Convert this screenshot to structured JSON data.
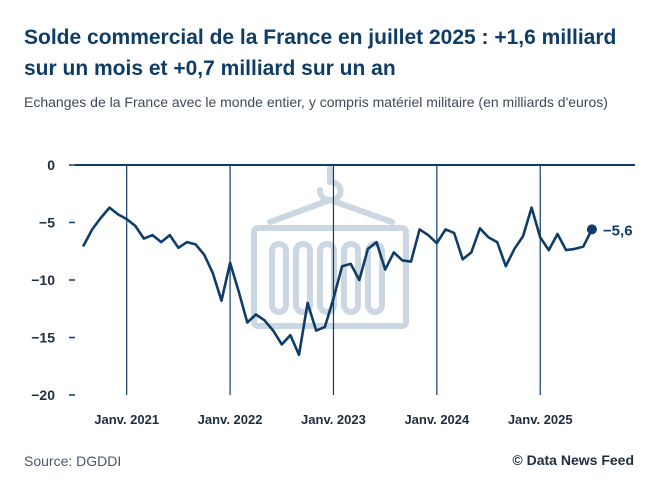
{
  "header": {
    "title": "Solde commercial de la France en juillet 2025 : +1,6 milliard sur un mois et +0,7 milliard sur un an",
    "subtitle": "Echanges de la France avec le monde entier, y compris matériel militaire (en milliards d'euros)"
  },
  "footer": {
    "source": "Source: DGDDI",
    "credit": "© Data News Feed"
  },
  "colors": {
    "line": "#0f3d68",
    "grid": "#0f3d68",
    "watermark": "#cbd8e4"
  },
  "watermark_icon": "shipping-container-crane-icon",
  "chart_data": {
    "type": "line",
    "ylim": [
      -20,
      0
    ],
    "yticks": [
      0,
      -5,
      -10,
      -15,
      -20
    ],
    "ytick_labels": [
      "0",
      "−5",
      "−10",
      "−15",
      "−20"
    ],
    "xlim": [
      "2020-07",
      "2025-12"
    ],
    "xticks": [
      "2021-01",
      "2022-01",
      "2023-01",
      "2024-01",
      "2025-01"
    ],
    "xtick_labels": [
      "Janv. 2021",
      "Janv. 2022",
      "Janv. 2023",
      "Janv. 2024",
      "Janv. 2025"
    ],
    "end_label": "−5,6",
    "series": [
      {
        "x": [
          "2020-08",
          "2020-09",
          "2020-10",
          "2020-11",
          "2020-12",
          "2021-01",
          "2021-02",
          "2021-03",
          "2021-04",
          "2021-05",
          "2021-06",
          "2021-07",
          "2021-08",
          "2021-09",
          "2021-10",
          "2021-11",
          "2021-12",
          "2022-01",
          "2022-02",
          "2022-03",
          "2022-04",
          "2022-05",
          "2022-06",
          "2022-07",
          "2022-08",
          "2022-09",
          "2022-10",
          "2022-11",
          "2022-12",
          "2023-01",
          "2023-02",
          "2023-03",
          "2023-04",
          "2023-05",
          "2023-06",
          "2023-07",
          "2023-08",
          "2023-09",
          "2023-10",
          "2023-11",
          "2023-12",
          "2024-01",
          "2024-02",
          "2024-03",
          "2024-04",
          "2024-05",
          "2024-06",
          "2024-07",
          "2024-08",
          "2024-09",
          "2024-10",
          "2024-11",
          "2024-12",
          "2025-01",
          "2025-02",
          "2025-03",
          "2025-04",
          "2025-05",
          "2025-06",
          "2025-07"
        ],
        "values": [
          -7.0,
          -5.6,
          -4.6,
          -3.7,
          -4.3,
          -4.7,
          -5.3,
          -6.4,
          -6.1,
          -6.7,
          -6.1,
          -7.2,
          -6.7,
          -6.9,
          -7.8,
          -9.4,
          -11.8,
          -8.5,
          -11.0,
          -13.7,
          -13.0,
          -13.5,
          -14.4,
          -15.6,
          -14.8,
          -16.5,
          -12.0,
          -14.4,
          -14.1,
          -11.6,
          -8.8,
          -8.6,
          -10.0,
          -7.3,
          -6.7,
          -9.1,
          -7.6,
          -8.3,
          -8.4,
          -5.6,
          -6.1,
          -6.8,
          -5.6,
          -5.9,
          -8.2,
          -7.6,
          -5.5,
          -6.3,
          -6.7,
          -8.8,
          -7.3,
          -6.2,
          -3.7,
          -6.3,
          -7.4,
          -6.0,
          -7.4,
          -7.3,
          -7.1,
          -5.6
        ]
      }
    ]
  }
}
